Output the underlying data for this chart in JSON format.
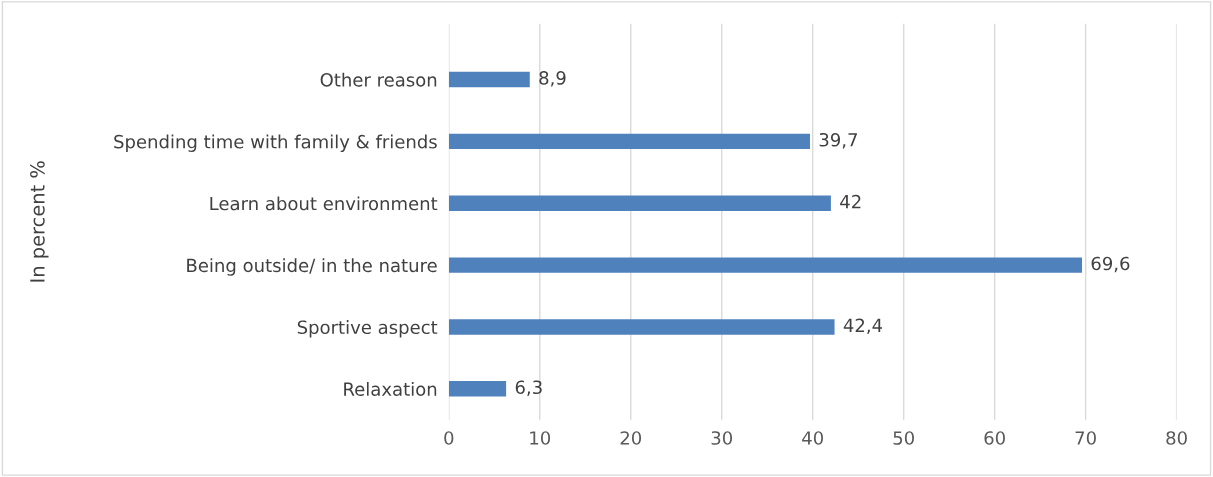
{
  "chart_data": {
    "type": "bar",
    "orientation": "horizontal",
    "ylabel": "In percent %",
    "categories": [
      "Other reason",
      "Spending time with family & friends",
      "Learn about environment",
      "Being outside/ in the nature",
      "Sportive aspect",
      "Relaxation"
    ],
    "values": [
      8.9,
      39.7,
      42,
      69.6,
      42.4,
      6.3
    ],
    "value_labels": [
      "8,9",
      "39,7",
      "42",
      "69,6",
      "42,4",
      "6,3"
    ],
    "color": "#4f81bd",
    "xlim": [
      0,
      80
    ],
    "xticks": [
      0,
      10,
      20,
      30,
      40,
      50,
      60,
      70,
      80
    ],
    "grid": "x"
  }
}
